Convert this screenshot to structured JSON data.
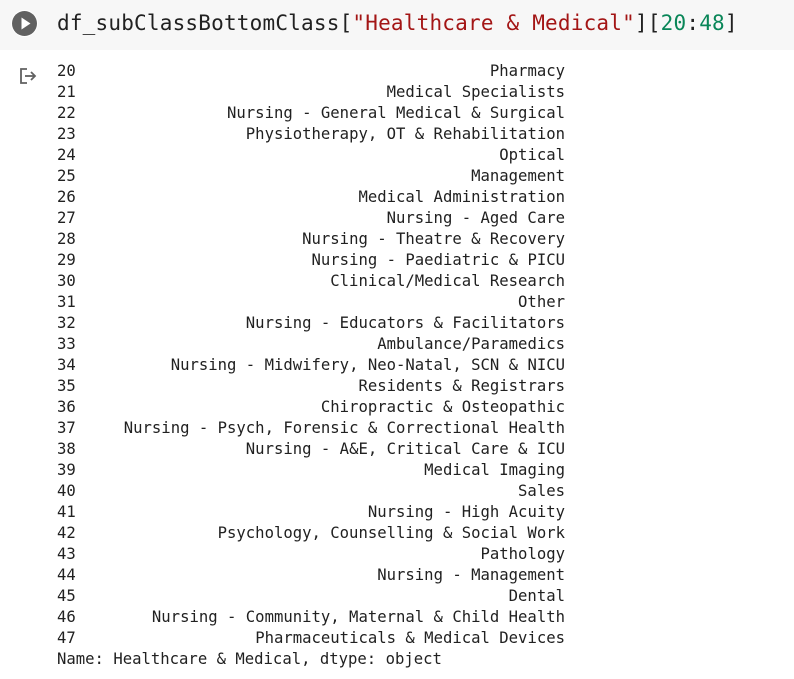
{
  "code_cell": {
    "run_icon": "play-circle-icon",
    "code": {
      "var": "df_subClassBottomClass",
      "open_bracket": "[",
      "key_string": "\"Healthcare & Medical\"",
      "mid": "][",
      "slice_start": "20",
      "colon": ":",
      "slice_end": "48",
      "close_bracket": "]"
    }
  },
  "output": {
    "icon": "output-redirect-icon",
    "rows": [
      {
        "index": "20",
        "value": "Pharmacy"
      },
      {
        "index": "21",
        "value": "Medical Specialists"
      },
      {
        "index": "22",
        "value": "Nursing - General Medical & Surgical"
      },
      {
        "index": "23",
        "value": "Physiotherapy, OT & Rehabilitation"
      },
      {
        "index": "24",
        "value": "Optical"
      },
      {
        "index": "25",
        "value": "Management"
      },
      {
        "index": "26",
        "value": "Medical Administration"
      },
      {
        "index": "27",
        "value": "Nursing - Aged Care"
      },
      {
        "index": "28",
        "value": "Nursing - Theatre & Recovery"
      },
      {
        "index": "29",
        "value": "Nursing - Paediatric & PICU"
      },
      {
        "index": "30",
        "value": "Clinical/Medical Research"
      },
      {
        "index": "31",
        "value": "Other"
      },
      {
        "index": "32",
        "value": "Nursing - Educators & Facilitators"
      },
      {
        "index": "33",
        "value": "Ambulance/Paramedics"
      },
      {
        "index": "34",
        "value": "Nursing - Midwifery, Neo-Natal, SCN & NICU"
      },
      {
        "index": "35",
        "value": "Residents & Registrars"
      },
      {
        "index": "36",
        "value": "Chiropractic & Osteopathic"
      },
      {
        "index": "37",
        "value": "Nursing - Psych, Forensic & Correctional Health"
      },
      {
        "index": "38",
        "value": "Nursing - A&E, Critical Care & ICU"
      },
      {
        "index": "39",
        "value": "Medical Imaging"
      },
      {
        "index": "40",
        "value": "Sales"
      },
      {
        "index": "41",
        "value": "Nursing - High Acuity"
      },
      {
        "index": "42",
        "value": "Psychology, Counselling & Social Work"
      },
      {
        "index": "43",
        "value": "Pathology"
      },
      {
        "index": "44",
        "value": "Nursing - Management"
      },
      {
        "index": "45",
        "value": "Dental"
      },
      {
        "index": "46",
        "value": "Nursing - Community, Maternal & Child Health"
      },
      {
        "index": "47",
        "value": "Pharmaceuticals & Medical Devices"
      }
    ],
    "footer": "Name: Healthcare & Medical, dtype: object"
  },
  "colors": {
    "code_background": "#f7f7f7",
    "string": "#a31515",
    "number": "#098658",
    "text": "#212121",
    "run_icon": "#616161"
  }
}
